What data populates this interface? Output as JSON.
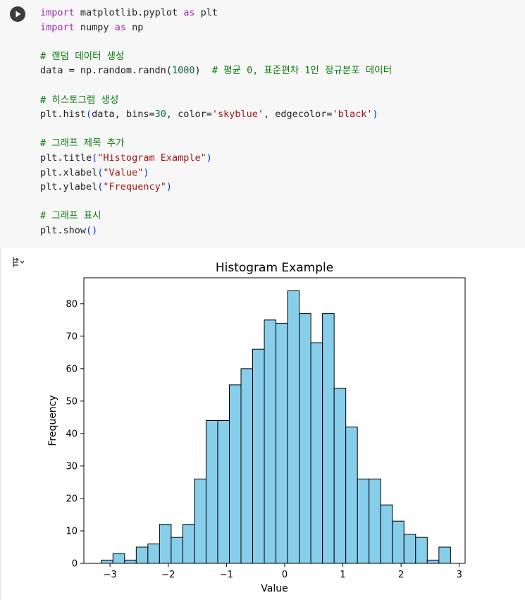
{
  "cell": {
    "run_icon": "play-circle-icon",
    "code_lines": [
      [
        {
          "t": "import",
          "c": "kw"
        },
        {
          "t": " matplotlib.pyplot ",
          "c": ""
        },
        {
          "t": "as",
          "c": "kw"
        },
        {
          "t": " plt",
          "c": ""
        }
      ],
      [
        {
          "t": "import",
          "c": "kw"
        },
        {
          "t": " numpy ",
          "c": ""
        },
        {
          "t": "as",
          "c": "kw"
        },
        {
          "t": " np",
          "c": ""
        }
      ],
      [],
      [
        {
          "t": "# 랜덤 데이터 생성",
          "c": "cm"
        }
      ],
      [
        {
          "t": "data = np.random.randn(",
          "c": ""
        },
        {
          "t": "1000",
          "c": "num"
        },
        {
          "t": ")  ",
          "c": ""
        },
        {
          "t": "# 평균 0, 표준편차 1인 정규분포 데이터",
          "c": "cm"
        }
      ],
      [],
      [
        {
          "t": "# 히스토그램 생성",
          "c": "cm"
        }
      ],
      [
        {
          "t": "plt.hist",
          "c": ""
        },
        {
          "t": "(",
          "c": "br1"
        },
        {
          "t": "data, bins=",
          "c": ""
        },
        {
          "t": "30",
          "c": "num"
        },
        {
          "t": ", color=",
          "c": ""
        },
        {
          "t": "'skyblue'",
          "c": "str"
        },
        {
          "t": ", edgecolor=",
          "c": ""
        },
        {
          "t": "'black'",
          "c": "str"
        },
        {
          "t": ")",
          "c": "br1"
        }
      ],
      [],
      [
        {
          "t": "# 그래프 제목 추가",
          "c": "cm"
        }
      ],
      [
        {
          "t": "plt.title",
          "c": ""
        },
        {
          "t": "(",
          "c": "br1"
        },
        {
          "t": "\"Histogram Example\"",
          "c": "str"
        },
        {
          "t": ")",
          "c": "br1"
        }
      ],
      [
        {
          "t": "plt.xlabel",
          "c": ""
        },
        {
          "t": "(",
          "c": "br1"
        },
        {
          "t": "\"Value\"",
          "c": "str"
        },
        {
          "t": ")",
          "c": "br1"
        }
      ],
      [
        {
          "t": "plt.ylabel",
          "c": ""
        },
        {
          "t": "(",
          "c": "br1"
        },
        {
          "t": "\"Frequency\"",
          "c": "str"
        },
        {
          "t": ")",
          "c": "br1"
        }
      ],
      [],
      [
        {
          "t": "# 그래프 표시",
          "c": "cm"
        }
      ],
      [
        {
          "t": "plt.show",
          "c": ""
        },
        {
          "t": "()",
          "c": "br1"
        }
      ]
    ]
  },
  "output": {
    "icon": "output-toggle-icon"
  },
  "chart_data": {
    "type": "bar",
    "title": "Histogram Example",
    "xlabel": "Value",
    "ylabel": "Frequency",
    "bar_color": "#87ceeb",
    "edge_color": "#000000",
    "x_start": -3.15,
    "bin_width": 0.2,
    "values": [
      1,
      3,
      1,
      5,
      6,
      12,
      8,
      12,
      26,
      44,
      44,
      55,
      60,
      66,
      75,
      74,
      84,
      77,
      68,
      77,
      54,
      42,
      26,
      26,
      18,
      13,
      9,
      8,
      1,
      5
    ],
    "xlim": [
      -3.45,
      3.1
    ],
    "ylim": [
      0,
      88
    ],
    "xticks": [
      {
        "v": -3,
        "label": "−3"
      },
      {
        "v": -2,
        "label": "−2"
      },
      {
        "v": -1,
        "label": "−1"
      },
      {
        "v": 0,
        "label": "0"
      },
      {
        "v": 1,
        "label": "1"
      },
      {
        "v": 2,
        "label": "2"
      },
      {
        "v": 3,
        "label": "3"
      }
    ],
    "yticks": [
      {
        "v": 0,
        "label": "0"
      },
      {
        "v": 10,
        "label": "10"
      },
      {
        "v": 20,
        "label": "20"
      },
      {
        "v": 30,
        "label": "30"
      },
      {
        "v": 40,
        "label": "40"
      },
      {
        "v": 50,
        "label": "50"
      },
      {
        "v": 60,
        "label": "60"
      },
      {
        "v": 70,
        "label": "70"
      },
      {
        "v": 80,
        "label": "80"
      }
    ],
    "grid": false,
    "legend": "none"
  }
}
